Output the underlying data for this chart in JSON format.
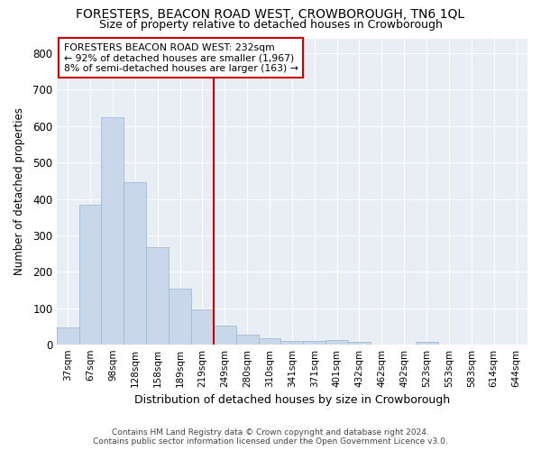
{
  "title": "FORESTERS, BEACON ROAD WEST, CROWBOROUGH, TN6 1QL",
  "subtitle": "Size of property relative to detached houses in Crowborough",
  "xlabel": "Distribution of detached houses by size in Crowborough",
  "ylabel": "Number of detached properties",
  "footer_line1": "Contains HM Land Registry data © Crown copyright and database right 2024.",
  "footer_line2": "Contains public sector information licensed under the Open Government Licence v3.0.",
  "categories": [
    "37sqm",
    "67sqm",
    "98sqm",
    "128sqm",
    "158sqm",
    "189sqm",
    "219sqm",
    "249sqm",
    "280sqm",
    "310sqm",
    "341sqm",
    "371sqm",
    "401sqm",
    "432sqm",
    "462sqm",
    "492sqm",
    "523sqm",
    "553sqm",
    "583sqm",
    "614sqm",
    "644sqm"
  ],
  "values": [
    47,
    383,
    624,
    447,
    268,
    155,
    98,
    52,
    29,
    17,
    11,
    12,
    14,
    8,
    0,
    0,
    8,
    0,
    0,
    0,
    0
  ],
  "bar_color": "#c8d8ea",
  "bar_edge_color": "#a0bcd4",
  "plot_bg_color": "#e8eef4",
  "fig_bg_color": "#ffffff",
  "grid_color": "#ffffff",
  "annotation_text_line1": "FORESTERS BEACON ROAD WEST: 232sqm",
  "annotation_text_line2": "← 92% of detached houses are smaller (1,967)",
  "annotation_text_line3": "8% of semi-detached houses are larger (163) →",
  "vline_color": "#cc0000",
  "vline_x": 6.5,
  "ylim": [
    0,
    840
  ],
  "yticks": [
    0,
    100,
    200,
    300,
    400,
    500,
    600,
    700,
    800
  ]
}
